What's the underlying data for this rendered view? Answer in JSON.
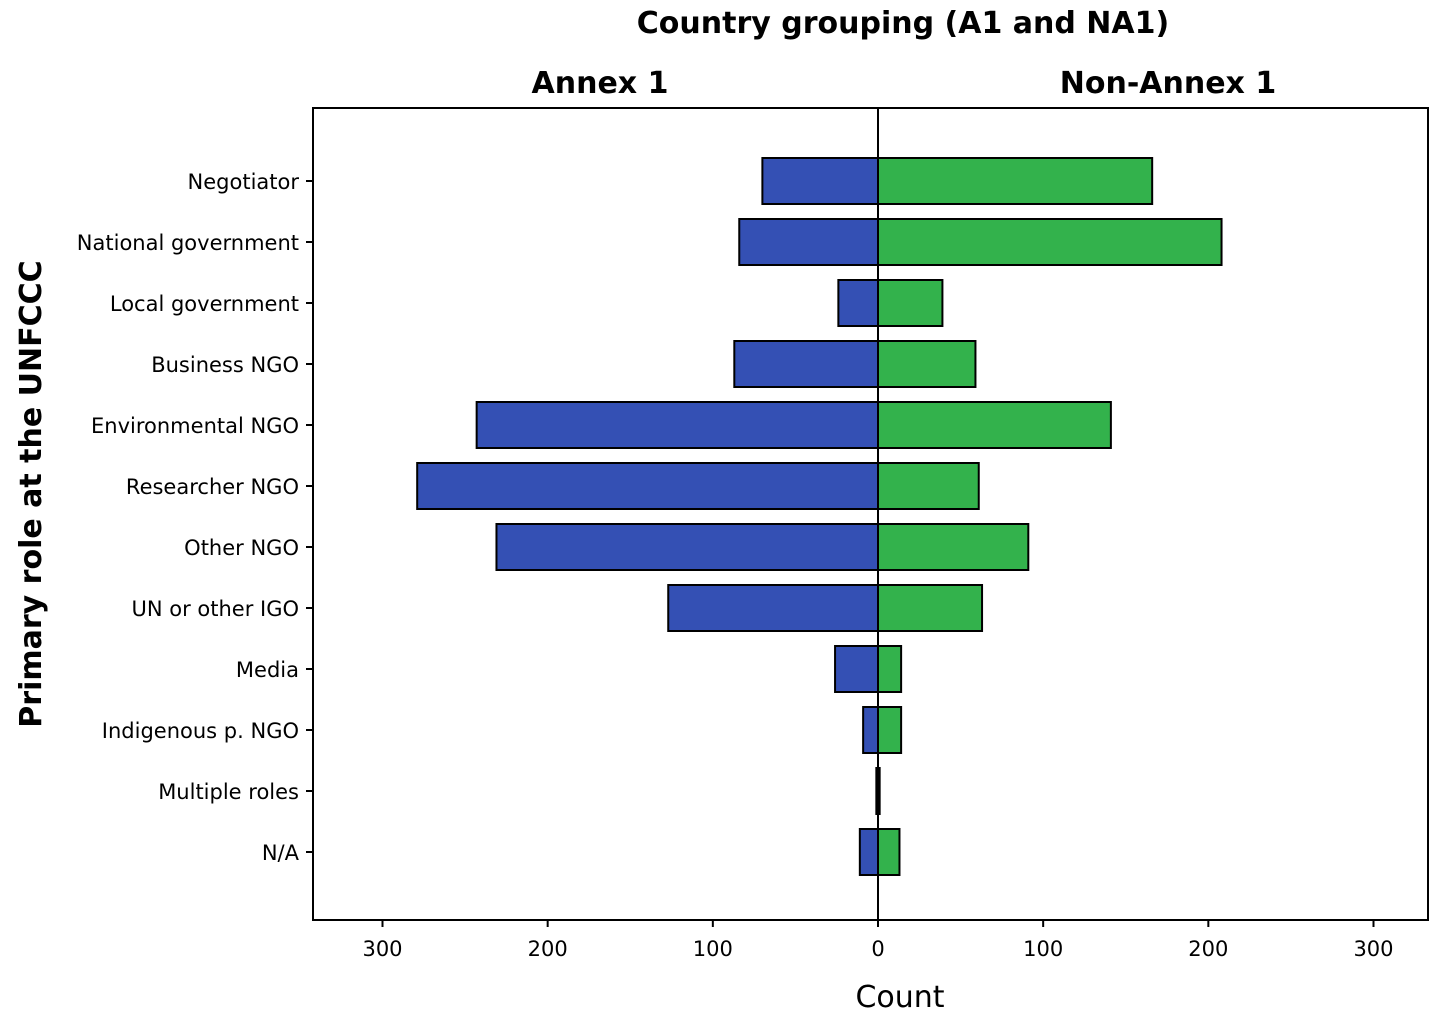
{
  "chart_data": {
    "type": "bar",
    "orientation": "horizontal",
    "layout": "back-to-back",
    "title": "Country grouping (A1 and NA1)",
    "xlabel": "Count",
    "ylabel": "Primary role at the UNFCCC",
    "xlim": [
      -333,
      333
    ],
    "xticks": [
      -300,
      -200,
      -100,
      0,
      100,
      200,
      300
    ],
    "xtick_labels": [
      "300",
      "200",
      "100",
      "0",
      "100",
      "200",
      "300"
    ],
    "grid": false,
    "categories": [
      "Negotiator",
      "National government",
      "Local government",
      "Business NGO",
      "Environmental NGO",
      "Researcher NGO",
      "Other NGO",
      "UN or other IGO",
      "Media",
      "Indigenous p. NGO",
      "Multiple roles",
      "N/A"
    ],
    "series": [
      {
        "name": "Annex 1",
        "side": "left",
        "color": "#3450b4",
        "values": [
          70,
          84,
          24,
          87,
          243,
          279,
          231,
          127,
          26,
          9,
          1,
          11
        ]
      },
      {
        "name": "Non-Annex 1",
        "side": "right",
        "color": "#33b24c",
        "values": [
          166,
          208,
          39,
          59,
          141,
          61,
          91,
          63,
          14,
          14,
          1,
          13
        ]
      }
    ]
  }
}
